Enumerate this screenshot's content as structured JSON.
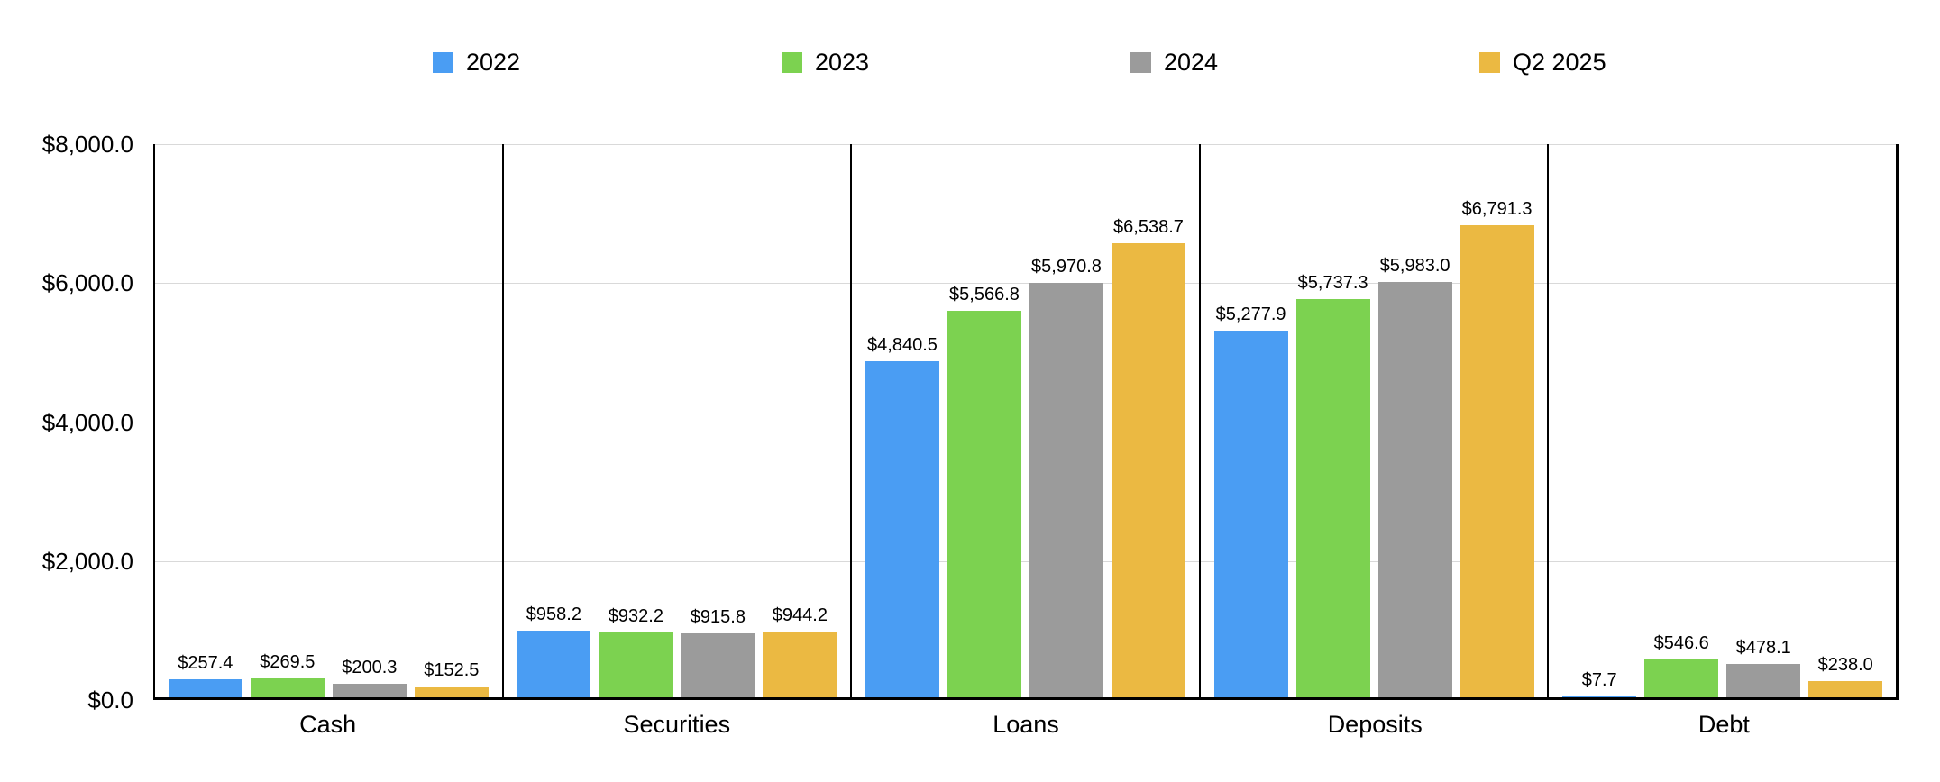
{
  "chart_data": {
    "type": "bar",
    "title": "",
    "xlabel": "",
    "ylabel": "",
    "grid": true,
    "legend_position": "top",
    "ylim": [
      0,
      8000
    ],
    "y_ticks": [
      {
        "value": 0,
        "label": "$0.0"
      },
      {
        "value": 2000,
        "label": "$2,000.0"
      },
      {
        "value": 4000,
        "label": "$4,000.0"
      },
      {
        "value": 6000,
        "label": "$6,000.0"
      },
      {
        "value": 8000,
        "label": "$8,000.0"
      }
    ],
    "categories": [
      "Cash",
      "Securities",
      "Loans",
      "Deposits",
      "Debt"
    ],
    "series": [
      {
        "name": "2022",
        "color": "#4a9df3",
        "values": [
          257.4,
          958.2,
          4840.5,
          5277.9,
          7.7
        ],
        "labels": [
          "$257.4",
          "$958.2",
          "$4,840.5",
          "$5,277.9",
          "$7.7"
        ]
      },
      {
        "name": "2023",
        "color": "#7cd250",
        "values": [
          269.5,
          932.2,
          5566.8,
          5737.3,
          546.6
        ],
        "labels": [
          "$269.5",
          "$932.2",
          "$5,566.8",
          "$5,737.3",
          "$546.6"
        ]
      },
      {
        "name": "2024",
        "color": "#9b9b9b",
        "values": [
          200.3,
          915.8,
          5970.8,
          5983.0,
          478.1
        ],
        "labels": [
          "$200.3",
          "$915.8",
          "$5,970.8",
          "$5,983.0",
          "$478.1"
        ]
      },
      {
        "name": "Q2 2025",
        "color": "#ebb942",
        "values": [
          152.5,
          944.2,
          6538.7,
          6791.3,
          238.0
        ],
        "labels": [
          "$152.5",
          "$944.2",
          "$6,538.7",
          "$6,791.3",
          "$238.0"
        ]
      }
    ],
    "colors": {
      "gridline": "#d9d9d9",
      "axis": "#000000",
      "background": "#ffffff",
      "text": "#000000"
    }
  }
}
